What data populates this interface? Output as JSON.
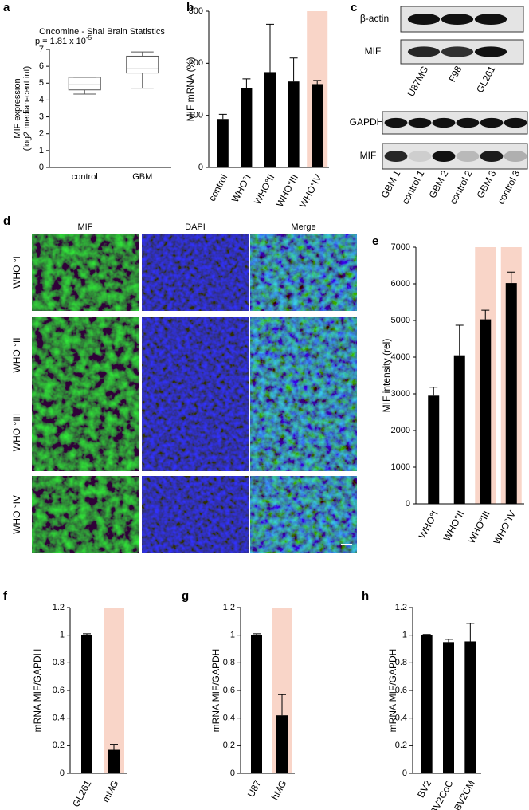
{
  "chart_data": [
    {
      "type": "box",
      "label": "a",
      "title": "Oncomine - Shai Brain Statistics",
      "subtitle": "p = 1.81 x 10",
      "subtitle_exponent": "-5",
      "ylabel": [
        "MIF expression",
        "(log2 median-cent int)"
      ],
      "categories": [
        "control",
        "GBM"
      ],
      "boxes": [
        {
          "min": 4.35,
          "q1": 4.6,
          "median": 4.9,
          "q3": 5.35,
          "max": 5.35
        },
        {
          "min": 4.7,
          "q1": 5.6,
          "median": 5.85,
          "q3": 6.6,
          "max": 6.85
        }
      ],
      "color": "#555555",
      "ylim": [
        0,
        7
      ],
      "yticks": [
        0,
        1,
        2,
        3,
        4,
        5,
        6,
        7
      ]
    },
    {
      "type": "bar",
      "label": "b",
      "ylabel": "MIF mRNA (%)",
      "categories": [
        "control",
        "WHO°I",
        "WHO°II",
        "WHO°III",
        "WHO°IV"
      ],
      "values": [
        93,
        152,
        183,
        165,
        160
      ],
      "errors": [
        9,
        18,
        92,
        45,
        7
      ],
      "highlight": [
        false,
        false,
        false,
        false,
        true
      ],
      "color": "#000000",
      "highlight_color": "#f9d5c8",
      "ylim": [
        0,
        300
      ],
      "yticks": [
        0,
        100,
        200,
        300
      ]
    },
    {
      "type": "bar",
      "label": "e",
      "ylabel": "MIF intensity (rel)",
      "categories": [
        "WHO°I",
        "WHO°II",
        "WHO°III",
        "WHO°IV"
      ],
      "values": [
        2950,
        4050,
        5030,
        6020
      ],
      "errors": [
        230,
        820,
        250,
        300
      ],
      "highlight": [
        false,
        false,
        true,
        true
      ],
      "color": "#000000",
      "highlight_color": "#f9d5c8",
      "ylim": [
        0,
        7000
      ],
      "yticks": [
        0,
        1000,
        2000,
        3000,
        4000,
        5000,
        6000,
        7000
      ]
    },
    {
      "type": "bar",
      "label": "f",
      "ylabel": "mRNA MIF/GAPDH",
      "categories": [
        "GL261",
        "mMG"
      ],
      "values": [
        1,
        0.17
      ],
      "errors": [
        0.01,
        0.04
      ],
      "highlight": [
        false,
        true
      ],
      "color": "#000000",
      "highlight_color": "#f9d5c8",
      "ylim": [
        0,
        1.2
      ],
      "yticks": [
        0,
        0.2,
        0.4,
        0.6,
        0.8,
        1,
        1.2
      ]
    },
    {
      "type": "bar",
      "label": "g",
      "ylabel": "mRNA MIF/GAPDH",
      "categories": [
        "U87",
        "hMG"
      ],
      "values": [
        1,
        0.42
      ],
      "errors": [
        0.01,
        0.15
      ],
      "highlight": [
        false,
        true
      ],
      "color": "#000000",
      "highlight_color": "#f9d5c8",
      "ylim": [
        0,
        1.2
      ],
      "yticks": [
        0,
        0.2,
        0.4,
        0.6,
        0.8,
        1,
        1.2
      ]
    },
    {
      "type": "bar",
      "label": "h",
      "ylabel": "mRNA MIF/GAPDH",
      "categories": [
        "BV2",
        "BV2CoC",
        "BV2CM"
      ],
      "values": [
        1,
        0.95,
        0.955
      ],
      "errors": [
        0.005,
        0.02,
        0.13
      ],
      "highlight": [
        false,
        false,
        false
      ],
      "color": "#000000",
      "highlight_color": "#f9d5c8",
      "ylim": [
        0,
        1.2
      ],
      "yticks": [
        0,
        0.2,
        0.4,
        0.6,
        0.8,
        1,
        1.2
      ]
    }
  ],
  "blots": [
    {
      "label": "c",
      "rows": [
        "β-actin",
        "MIF"
      ],
      "lanes": [
        "U87MG",
        "F98",
        "GL261"
      ]
    },
    {
      "rows": [
        "GAPDH",
        "MIF"
      ],
      "lanes": [
        "GBM 1",
        "control 1",
        "GBM 2",
        "control 2",
        "GBM 3",
        "control 3"
      ]
    }
  ],
  "micrographs": {
    "label": "d",
    "columns": [
      "MIF",
      "DAPI",
      "Merge"
    ],
    "rows": [
      "WHO °I",
      "WHO °II",
      "WHO °III",
      "WHO °IV"
    ]
  }
}
